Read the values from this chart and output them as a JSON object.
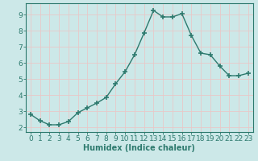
{
  "x": [
    0,
    1,
    2,
    3,
    4,
    5,
    6,
    7,
    8,
    9,
    10,
    11,
    12,
    13,
    14,
    15,
    16,
    17,
    18,
    19,
    20,
    21,
    22,
    23
  ],
  "y": [
    2.8,
    2.4,
    2.15,
    2.15,
    2.35,
    2.9,
    3.2,
    3.5,
    3.85,
    4.7,
    5.45,
    6.5,
    7.85,
    9.25,
    8.85,
    8.85,
    9.05,
    7.7,
    6.6,
    6.5,
    5.8,
    5.2,
    5.2,
    5.35
  ],
  "line_color": "#2d7a6e",
  "marker": "+",
  "marker_size": 4,
  "marker_linewidth": 1.2,
  "line_width": 1.0,
  "bg_color": "#cce8e8",
  "grid_color": "#e8c8c8",
  "xlabel": "Humidex (Indice chaleur)",
  "ylim": [
    1.7,
    9.7
  ],
  "xlim": [
    -0.5,
    23.5
  ],
  "yticks": [
    2,
    3,
    4,
    5,
    6,
    7,
    8,
    9
  ],
  "xticks": [
    0,
    1,
    2,
    3,
    4,
    5,
    6,
    7,
    8,
    9,
    10,
    11,
    12,
    13,
    14,
    15,
    16,
    17,
    18,
    19,
    20,
    21,
    22,
    23
  ],
  "tick_color": "#2d7a6e",
  "axis_color": "#2d7a6e",
  "xlabel_fontsize": 7,
  "tick_fontsize": 6.5
}
